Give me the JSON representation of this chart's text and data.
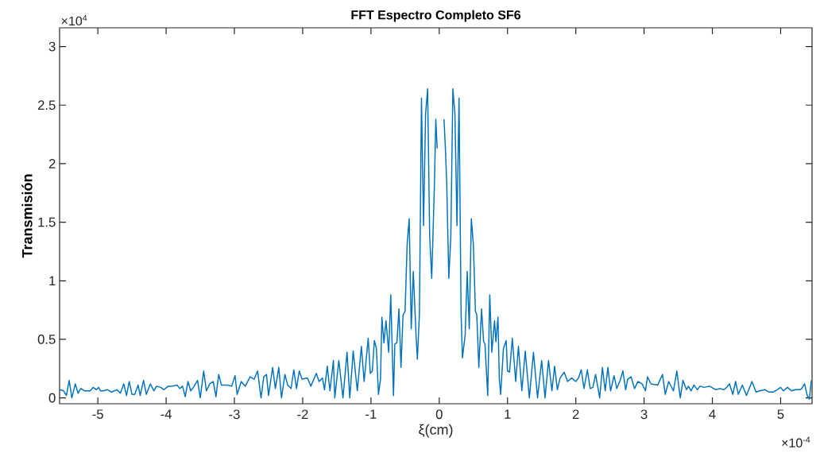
{
  "chart_data": {
    "type": "line",
    "title": "FFT Espectro Completo SF6",
    "xlabel": "ξ(cm)",
    "ylabel": "Transmisión",
    "annotations": [
      "×10$^{4}$",
      "×10$^{-4}$"
    ],
    "xlim": [
      -5.56,
      5.46
    ],
    "ylim": [
      -0.05,
      3.16
    ],
    "xticks": [
      -5,
      -4,
      -3,
      -2,
      -1,
      0,
      1,
      2,
      3,
      4,
      5
    ],
    "yticks": [
      0,
      0.5,
      1,
      1.5,
      2,
      2.5,
      3
    ],
    "color": "#0072bd",
    "x": [
      -5.56,
      -5.5,
      -5.46,
      -5.42,
      -5.38,
      -5.33,
      -5.29,
      -5.25,
      -5.19,
      -5.11,
      -5.07,
      -5.02,
      -4.99,
      -4.96,
      -4.92,
      -4.86,
      -4.8,
      -4.72,
      -4.67,
      -4.62,
      -4.58,
      -4.54,
      -4.5,
      -4.46,
      -4.41,
      -4.38,
      -4.33,
      -4.29,
      -4.23,
      -4.18,
      -4.14,
      -4.08,
      -4.03,
      -3.97,
      -3.91,
      -3.84,
      -3.8,
      -3.76,
      -3.72,
      -3.68,
      -3.64,
      -3.6,
      -3.54,
      -3.5,
      -3.45,
      -3.41,
      -3.36,
      -3.31,
      -3.27,
      -3.23,
      -3.19,
      -3.1,
      -3.04,
      -2.99,
      -2.96,
      -2.9,
      -2.84,
      -2.77,
      -2.71,
      -2.66,
      -2.61,
      -2.57,
      -2.53,
      -2.5,
      -2.44,
      -2.4,
      -2.35,
      -2.31,
      -2.26,
      -2.22,
      -2.17,
      -2.13,
      -2.09,
      -2.05,
      -2.01,
      -1.93,
      -1.88,
      -1.8,
      -1.76,
      -1.71,
      -1.68,
      -1.64,
      -1.6,
      -1.55,
      -1.53,
      -1.47,
      -1.41,
      -1.35,
      -1.31,
      -1.26,
      -1.2,
      -1.14,
      -1.1,
      -1.04,
      -1.01,
      -0.98,
      -0.95,
      -0.92,
      -0.89,
      -0.86,
      -0.84,
      -0.81,
      -0.78,
      -0.74,
      -0.71,
      -0.67,
      -0.65,
      -0.62,
      -0.59,
      -0.56,
      -0.53,
      -0.5,
      -0.47,
      -0.44,
      -0.41,
      -0.38,
      -0.34,
      -0.32,
      -0.29,
      -0.26,
      -0.23,
      -0.2,
      -0.17,
      -0.14,
      -0.11,
      -0.07,
      -0.05,
      -0.03,
      -0.01,
      0.04,
      0.07,
      0.09,
      0.11,
      0.14,
      0.17,
      0.2,
      0.23,
      0.26,
      0.29,
      0.32,
      0.34,
      0.38,
      0.41,
      0.44,
      0.47,
      0.5,
      0.53,
      0.55,
      0.58,
      0.62,
      0.65,
      0.67,
      0.71,
      0.74,
      0.77,
      0.81,
      0.83,
      0.86,
      0.88,
      0.9,
      0.94,
      0.98,
      1.0,
      1.03,
      1.07,
      1.12,
      1.16,
      1.21,
      1.26,
      1.32,
      1.38,
      1.44,
      1.5,
      1.55,
      1.6,
      1.65,
      1.69,
      1.73,
      1.77,
      1.83,
      1.88,
      1.94,
      2.0,
      2.04,
      2.08,
      2.12,
      2.17,
      2.21,
      2.25,
      2.29,
      2.35,
      2.39,
      2.43,
      2.47,
      2.51,
      2.56,
      2.6,
      2.65,
      2.69,
      2.73,
      2.76,
      2.81,
      2.86,
      2.91,
      2.97,
      3.02,
      3.05,
      3.1,
      3.2,
      3.27,
      3.31,
      3.36,
      3.43,
      3.48,
      3.53,
      3.57,
      3.62,
      3.65,
      3.69,
      3.73,
      3.78,
      3.82,
      3.88,
      3.96,
      4.02,
      4.05,
      4.11,
      4.17,
      4.21,
      4.25,
      4.3,
      4.34,
      4.38,
      4.44,
      4.5,
      4.58,
      4.64,
      4.69,
      4.77,
      4.83,
      4.89,
      4.95,
      5.0,
      5.04,
      5.1,
      5.16,
      5.22,
      5.28,
      5.31,
      5.35,
      5.39,
      5.42,
      5.45
    ],
    "values": [
      0.07,
      0.06,
      0.02,
      0.15,
      0.0,
      0.12,
      0.04,
      0.08,
      0.06,
      0.06,
      0.09,
      0.07,
      0.09,
      0.06,
      0.06,
      0.07,
      0.05,
      0.07,
      0.04,
      0.12,
      0.02,
      0.14,
      0.03,
      0.03,
      0.11,
      0.02,
      0.15,
      0.03,
      0.12,
      0.06,
      0.1,
      0.09,
      0.07,
      0.1,
      0.1,
      0.11,
      0.08,
      0.1,
      0.01,
      0.14,
      0.06,
      0.09,
      0.15,
      0.0,
      0.23,
      0.06,
      0.12,
      0.14,
      0.01,
      0.2,
      0.11,
      0.11,
      0.1,
      0.19,
      0.03,
      0.14,
      0.1,
      0.18,
      0.16,
      0.23,
      0.0,
      0.18,
      0.2,
      0.02,
      0.26,
      0.08,
      0.26,
      0.0,
      0.2,
      0.11,
      0.08,
      0.24,
      0.08,
      0.23,
      0.16,
      0.17,
      0.1,
      0.21,
      0.14,
      0.17,
      0.07,
      0.27,
      0.06,
      0.32,
      0.0,
      0.32,
      0.0,
      0.39,
      0.0,
      0.4,
      0.06,
      0.44,
      0.14,
      0.51,
      0.21,
      0.23,
      0.49,
      0.42,
      0.03,
      0.16,
      0.69,
      0.47,
      0.66,
      0.39,
      0.88,
      0.02,
      0.46,
      0.47,
      0.76,
      0.26,
      0.71,
      0.74,
      1.31,
      1.53,
      0.59,
      1.08,
      0.54,
      0.33,
      0.72,
      2.56,
      1.47,
      2.42,
      2.64,
      1.38,
      1.02,
      1.83,
      2.38,
      2.13,
      null,
      null,
      2.38,
      2.13,
      1.83,
      1.02,
      1.38,
      2.64,
      2.42,
      1.47,
      2.56,
      0.72,
      0.34,
      0.54,
      1.08,
      0.59,
      1.53,
      1.31,
      0.74,
      0.71,
      0.26,
      0.76,
      0.48,
      0.46,
      0.02,
      0.88,
      0.39,
      0.66,
      0.48,
      0.69,
      0.16,
      0.03,
      0.42,
      0.49,
      0.23,
      0.22,
      0.51,
      0.14,
      0.44,
      0.06,
      0.4,
      0.0,
      0.39,
      0.0,
      0.32,
      0.0,
      0.32,
      0.06,
      0.27,
      0.07,
      0.17,
      0.22,
      0.14,
      0.17,
      0.14,
      0.17,
      0.24,
      0.08,
      0.24,
      0.08,
      0.09,
      0.2,
      0.0,
      0.26,
      0.06,
      0.26,
      0.06,
      0.19,
      0.08,
      0.15,
      0.23,
      0.07,
      0.16,
      0.18,
      0.08,
      0.14,
      0.12,
      0.06,
      0.18,
      0.12,
      0.11,
      0.2,
      0.03,
      0.14,
      0.06,
      0.23,
      0.0,
      0.15,
      0.07,
      0.1,
      0.06,
      0.11,
      0.07,
      0.1,
      0.09,
      0.1,
      0.08,
      0.07,
      0.08,
      0.07,
      0.09,
      0.12,
      0.03,
      0.14,
      0.03,
      0.11,
      0.02,
      0.14,
      0.05,
      0.06,
      0.07,
      0.05,
      0.05,
      0.07,
      0.09,
      0.06,
      0.09,
      0.06,
      0.07,
      0.07,
      0.08,
      0.12,
      0.02,
      -0.01,
      0.15
    ]
  }
}
